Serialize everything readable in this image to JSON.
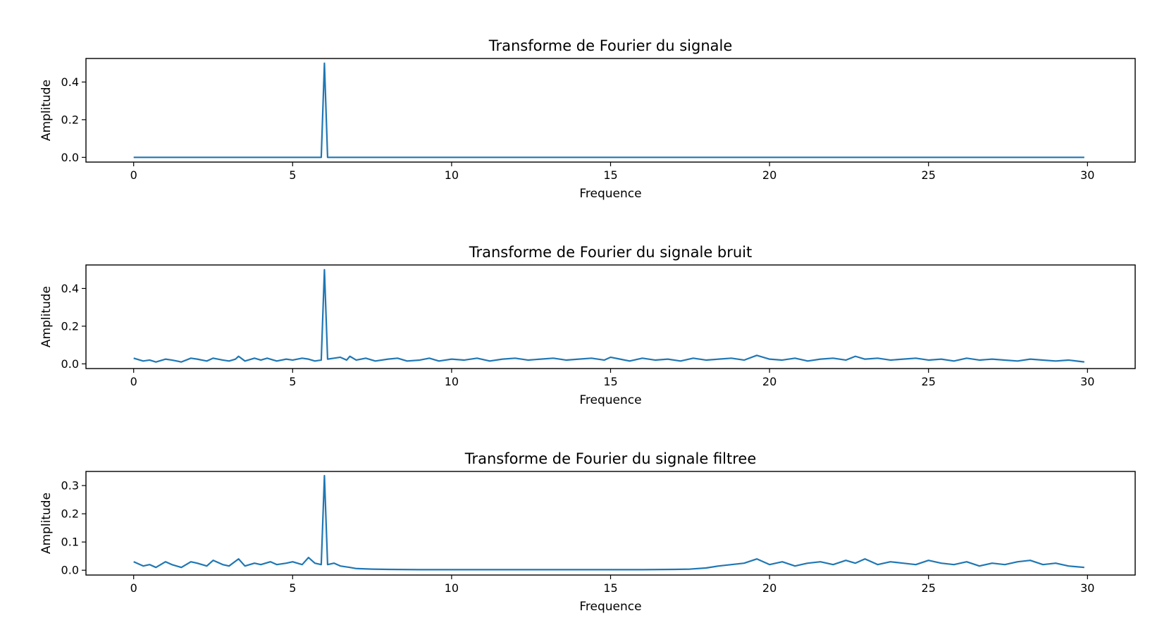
{
  "colors": {
    "line": "#1f77b4",
    "background": "#ffffff"
  },
  "chart_data": [
    {
      "type": "line",
      "title": "Transforme de Fourier du signale",
      "xlabel": "Frequence",
      "ylabel": "Amplitude",
      "xlim": [
        -1.5,
        31.5
      ],
      "ylim": [
        -0.025,
        0.525
      ],
      "xticks": [
        0,
        5,
        10,
        15,
        20,
        25,
        30
      ],
      "xtick_labels": [
        "0",
        "5",
        "10",
        "15",
        "20",
        "25",
        "30"
      ],
      "yticks": [
        0.0,
        0.2,
        0.4
      ],
      "ytick_labels": [
        "0.0",
        "0.2",
        "0.4"
      ],
      "grid": false,
      "series": [
        {
          "x": [
            0,
            5.9,
            6.0,
            6.1,
            29.9
          ],
          "y": [
            0.0,
            0.0,
            0.5,
            0.0,
            0.0
          ]
        }
      ]
    },
    {
      "type": "line",
      "title": "Transforme de Fourier du signale bruit",
      "xlabel": "Frequence",
      "ylabel": "Amplitude",
      "xlim": [
        -1.5,
        31.5
      ],
      "ylim": [
        -0.025,
        0.525
      ],
      "xticks": [
        0,
        5,
        10,
        15,
        20,
        25,
        30
      ],
      "xtick_labels": [
        "0",
        "5",
        "10",
        "15",
        "20",
        "25",
        "30"
      ],
      "yticks": [
        0.0,
        0.2,
        0.4
      ],
      "ytick_labels": [
        "0.0",
        "0.2",
        "0.4"
      ],
      "grid": false,
      "series": [
        {
          "x": [
            0,
            0.3,
            0.5,
            0.7,
            1.0,
            1.2,
            1.5,
            1.8,
            2.0,
            2.3,
            2.5,
            2.8,
            3.0,
            3.2,
            3.3,
            3.5,
            3.8,
            4.0,
            4.2,
            4.5,
            4.8,
            5.0,
            5.3,
            5.5,
            5.7,
            5.9,
            6.0,
            6.1,
            6.3,
            6.5,
            6.7,
            6.8,
            7.0,
            7.3,
            7.6,
            8.0,
            8.3,
            8.6,
            9.0,
            9.3,
            9.6,
            10.0,
            10.4,
            10.8,
            11.2,
            11.6,
            12.0,
            12.4,
            12.8,
            13.2,
            13.6,
            14.0,
            14.4,
            14.8,
            15.0,
            15.3,
            15.6,
            16.0,
            16.4,
            16.8,
            17.2,
            17.6,
            18.0,
            18.4,
            18.8,
            19.2,
            19.6,
            20.0,
            20.4,
            20.8,
            21.2,
            21.6,
            22.0,
            22.4,
            22.7,
            23.0,
            23.4,
            23.8,
            24.2,
            24.6,
            25.0,
            25.4,
            25.8,
            26.2,
            26.6,
            27.0,
            27.4,
            27.8,
            28.2,
            28.6,
            29.0,
            29.4,
            29.9
          ],
          "y": [
            0.03,
            0.015,
            0.02,
            0.01,
            0.025,
            0.02,
            0.01,
            0.03,
            0.025,
            0.015,
            0.03,
            0.02,
            0.015,
            0.025,
            0.04,
            0.015,
            0.03,
            0.02,
            0.03,
            0.015,
            0.025,
            0.02,
            0.03,
            0.025,
            0.015,
            0.02,
            0.5,
            0.025,
            0.03,
            0.035,
            0.02,
            0.04,
            0.02,
            0.03,
            0.015,
            0.025,
            0.03,
            0.015,
            0.02,
            0.03,
            0.015,
            0.025,
            0.02,
            0.03,
            0.015,
            0.025,
            0.03,
            0.02,
            0.025,
            0.03,
            0.02,
            0.025,
            0.03,
            0.02,
            0.035,
            0.025,
            0.015,
            0.03,
            0.02,
            0.025,
            0.015,
            0.03,
            0.02,
            0.025,
            0.03,
            0.02,
            0.045,
            0.025,
            0.02,
            0.03,
            0.015,
            0.025,
            0.03,
            0.02,
            0.04,
            0.025,
            0.03,
            0.02,
            0.025,
            0.03,
            0.02,
            0.025,
            0.015,
            0.03,
            0.02,
            0.025,
            0.02,
            0.015,
            0.025,
            0.02,
            0.015,
            0.02,
            0.01
          ]
        }
      ]
    },
    {
      "type": "line",
      "title": "Transforme de Fourier du signale filtree",
      "xlabel": "Frequence",
      "ylabel": "Amplitude",
      "xlim": [
        -1.5,
        31.5
      ],
      "ylim": [
        -0.017,
        0.35
      ],
      "xticks": [
        0,
        5,
        10,
        15,
        20,
        25,
        30
      ],
      "xtick_labels": [
        "0",
        "5",
        "10",
        "15",
        "20",
        "25",
        "30"
      ],
      "yticks": [
        0.0,
        0.1,
        0.2,
        0.3
      ],
      "ytick_labels": [
        "0.0",
        "0.1",
        "0.2",
        "0.3"
      ],
      "grid": false,
      "series": [
        {
          "x": [
            0,
            0.3,
            0.5,
            0.7,
            1.0,
            1.2,
            1.5,
            1.8,
            2.0,
            2.3,
            2.5,
            2.8,
            3.0,
            3.3,
            3.5,
            3.8,
            4.0,
            4.3,
            4.5,
            4.8,
            5.0,
            5.3,
            5.5,
            5.7,
            5.9,
            6.0,
            6.1,
            6.3,
            6.5,
            6.8,
            7.0,
            7.5,
            8.0,
            9.0,
            10.0,
            12.0,
            14.0,
            16.0,
            17.0,
            17.5,
            18.0,
            18.4,
            18.8,
            19.2,
            19.6,
            20.0,
            20.4,
            20.8,
            21.2,
            21.6,
            22.0,
            22.4,
            22.7,
            23.0,
            23.4,
            23.8,
            24.2,
            24.6,
            25.0,
            25.4,
            25.8,
            26.2,
            26.6,
            27.0,
            27.4,
            27.8,
            28.2,
            28.6,
            29.0,
            29.4,
            29.9
          ],
          "y": [
            0.03,
            0.015,
            0.02,
            0.01,
            0.03,
            0.02,
            0.01,
            0.03,
            0.025,
            0.015,
            0.035,
            0.02,
            0.015,
            0.04,
            0.015,
            0.025,
            0.02,
            0.03,
            0.02,
            0.025,
            0.03,
            0.02,
            0.045,
            0.025,
            0.02,
            0.335,
            0.02,
            0.025,
            0.015,
            0.01,
            0.006,
            0.004,
            0.003,
            0.002,
            0.002,
            0.002,
            0.002,
            0.002,
            0.003,
            0.004,
            0.008,
            0.015,
            0.02,
            0.025,
            0.04,
            0.02,
            0.03,
            0.015,
            0.025,
            0.03,
            0.02,
            0.035,
            0.025,
            0.04,
            0.02,
            0.03,
            0.025,
            0.02,
            0.035,
            0.025,
            0.02,
            0.03,
            0.015,
            0.025,
            0.02,
            0.03,
            0.035,
            0.02,
            0.025,
            0.015,
            0.01
          ]
        }
      ]
    }
  ]
}
